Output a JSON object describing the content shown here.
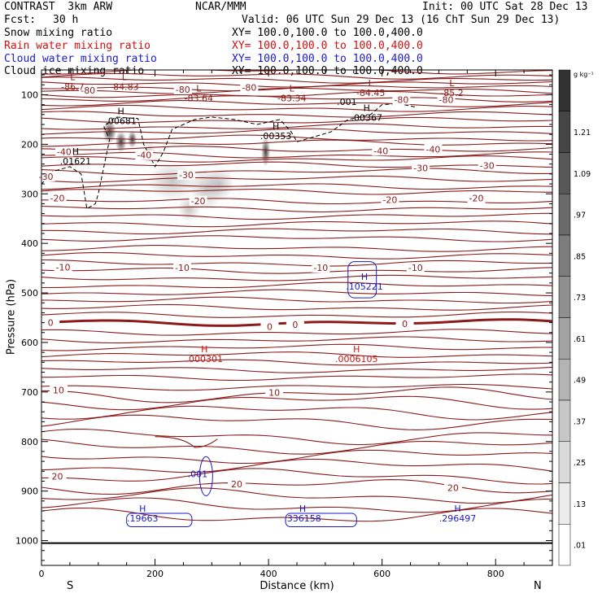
{
  "header": {
    "model": "CONTRAST  3km ARW",
    "org": "NCAR/MMM",
    "init": "Init: 00 UTC Sat 28 Dec 13",
    "fcst_label": "Fcst:",
    "fcst_value": "30 h",
    "valid": "Valid: 06 UTC Sun 29 Dec 13 (16 ChT Sun 29 Dec 13)",
    "fields": [
      {
        "name": "Snow mixing ratio",
        "xy": "XY= 100.0,100.0 to 100.0,400.0",
        "color": "#000000"
      },
      {
        "name": "Rain water mixing ratio",
        "xy": "XY= 100.0,100.0 to 100.0,400.0",
        "color": "#d01010"
      },
      {
        "name": "Cloud water mixing ratio",
        "xy": "XY= 100.0,100.0 to 100.0,400.0",
        "color": "#1a1acc"
      },
      {
        "name": "Cloud ice mixing ratio",
        "xy": "XY= 100.0,100.0 to 100.0,400.0",
        "color": "#000000"
      }
    ]
  },
  "chart_data": {
    "type": "heatmap",
    "xlabel": "Distance (km)",
    "ylabel": "Pressure (hPa)",
    "xlim": [
      0,
      900
    ],
    "ylim": [
      1050,
      50
    ],
    "xticks": [
      0,
      200,
      400,
      600,
      800
    ],
    "yticks": [
      100,
      200,
      300,
      400,
      500,
      600,
      700,
      800,
      900,
      1000
    ],
    "end_labels": {
      "left": "S",
      "right": "N"
    },
    "colorbar": {
      "unit": "g kg⁻¹",
      "ticks": [
        ".01",
        ".13",
        ".25",
        ".37",
        ".49",
        ".61",
        ".73",
        ".85",
        ".97",
        "1.09",
        "1.21"
      ]
    },
    "temperature_isotherms": {
      "color": "#8b1a1a",
      "levels": [
        {
          "p": 100,
          "label": "-80"
        },
        {
          "p": 198,
          "label": "-40"
        },
        {
          "p": 242,
          "label": "-30"
        },
        {
          "p": 315,
          "label": "-20"
        },
        {
          "p": 455,
          "label": "-10"
        },
        {
          "p": 560,
          "label": "0"
        },
        {
          "p": 705,
          "label": "10"
        },
        {
          "p": 890,
          "label": "20"
        }
      ],
      "labels": [
        {
          "x": 8,
          "p": 265,
          "text": "-30"
        },
        {
          "x": 255,
          "p": 262,
          "text": "-30"
        },
        {
          "x": 668,
          "p": 248,
          "text": "-30"
        },
        {
          "x": 785,
          "p": 243,
          "text": "-30"
        },
        {
          "x": 40,
          "p": 215,
          "text": "-40"
        },
        {
          "x": 181,
          "p": 222,
          "text": "-40"
        },
        {
          "x": 598,
          "p": 213,
          "text": "-40"
        },
        {
          "x": 690,
          "p": 210,
          "text": "-40"
        },
        {
          "x": 28,
          "p": 309,
          "text": "-20"
        },
        {
          "x": 276,
          "p": 314,
          "text": "-20"
        },
        {
          "x": 614,
          "p": 312,
          "text": "-20"
        },
        {
          "x": 766,
          "p": 309,
          "text": "-20"
        },
        {
          "x": 38,
          "p": 448,
          "text": "-10"
        },
        {
          "x": 248,
          "p": 449,
          "text": "-10"
        },
        {
          "x": 492,
          "p": 449,
          "text": "-10"
        },
        {
          "x": 659,
          "p": 449,
          "text": "-10"
        },
        {
          "x": 16,
          "p": 560,
          "text": "0"
        },
        {
          "x": 402,
          "p": 568,
          "text": "0"
        },
        {
          "x": 447,
          "p": 564,
          "text": "0"
        },
        {
          "x": 640,
          "p": 562,
          "text": "0"
        },
        {
          "x": 30,
          "p": 696,
          "text": "10"
        },
        {
          "x": 410,
          "p": 701,
          "text": "10"
        },
        {
          "x": 28,
          "p": 870,
          "text": "20"
        },
        {
          "x": 344,
          "p": 886,
          "text": "20"
        },
        {
          "x": 725,
          "p": 893,
          "text": "20"
        },
        {
          "x": 82,
          "p": 91,
          "text": "-80"
        },
        {
          "x": 249,
          "p": 89,
          "text": "-80"
        },
        {
          "x": 366,
          "p": 85,
          "text": "-80"
        },
        {
          "x": 634,
          "p": 110,
          "text": "-80"
        },
        {
          "x": 713,
          "p": 110,
          "text": "-80"
        }
      ]
    },
    "extrema": [
      {
        "kind": "L",
        "x": 55,
        "p": 87,
        "value": "-86.7",
        "color": "#8b1a1a"
      },
      {
        "kind": "L",
        "x": 146,
        "p": 87,
        "value": "-84.83",
        "color": "#8b1a1a"
      },
      {
        "kind": "L",
        "x": 277,
        "p": 110,
        "value": "-83.64",
        "color": "#8b1a1a"
      },
      {
        "kind": "L",
        "x": 441,
        "p": 110,
        "value": "-83.34",
        "color": "#8b1a1a"
      },
      {
        "kind": "L",
        "x": 580,
        "p": 99,
        "value": "-84.45",
        "color": "#8b1a1a"
      },
      {
        "kind": "L",
        "x": 723,
        "p": 99,
        "value": "-85.2",
        "color": "#8b1a1a"
      },
      {
        "kind": "H",
        "x": 140,
        "p": 156,
        "value": ".00681",
        "color": "#000000"
      },
      {
        "kind": "H",
        "x": 60,
        "p": 237,
        "value": ".01621",
        "color": "#000000"
      },
      {
        "kind": "H",
        "x": 413,
        "p": 186,
        "value": ".00353",
        "color": "#000000"
      },
      {
        "kind": "H",
        "x": 573,
        "p": 149,
        "value": ".00367",
        "color": "#000000"
      },
      {
        "kind": "H",
        "x": 287,
        "p": 636,
        "value": ".000301",
        "color": "#d01010"
      },
      {
        "kind": "H",
        "x": 555,
        "p": 636,
        "value": ".0006105",
        "color": "#d01010"
      },
      {
        "kind": "H",
        "x": 569,
        "p": 490,
        "value": ".105221",
        "color": "#1a1acc"
      },
      {
        "kind": "H",
        "x": 178,
        "p": 958,
        "value": ".19663",
        "color": "#1a1acc"
      },
      {
        "kind": "H",
        "x": 460,
        "p": 958,
        "value": ".336158",
        "color": "#1a1acc"
      },
      {
        "kind": "H",
        "x": 733,
        "p": 958,
        "value": ".296497",
        "color": "#1a1acc"
      }
    ],
    "extra_labels": [
      {
        "x": 538,
        "p": 114,
        "text": ".001",
        "color": "#000000"
      },
      {
        "x": 275,
        "p": 865,
        "text": ".001",
        "color": "#1a1acc"
      }
    ]
  }
}
